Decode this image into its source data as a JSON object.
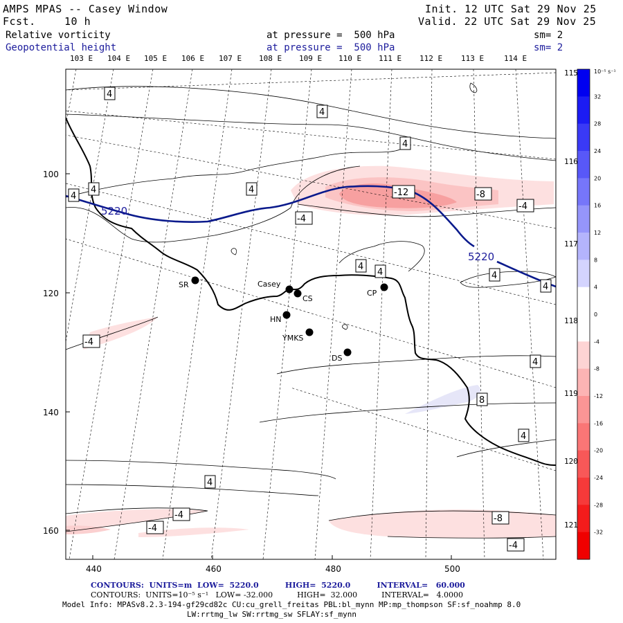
{
  "header": {
    "title": "AMPS MPAS -- Casey Window",
    "fcst_label": "Fcst.",
    "fcst_value": "10 h",
    "init": "Init. 12 UTC Sat 29 Nov 25",
    "valid": "Valid. 22 UTC Sat 29 Nov 25",
    "field1_name": "Relative vorticity",
    "field1_pressure": "at pressure =  500 hPa",
    "field1_sm": "sm= 2",
    "field2_name": "Geopotential height",
    "field2_pressure": "at pressure =  500 hPa",
    "field2_sm": "sm= 2"
  },
  "longitude_labels_top": [
    "103 E",
    "104 E",
    "105 E",
    "106 E",
    "107 E",
    "108 E",
    "109 E",
    "110 E",
    "111 E",
    "112 E",
    "113 E",
    "114 E"
  ],
  "longitude_labels_right": [
    "115 E",
    "116 E",
    "117 E",
    "118 E",
    "119 E",
    "120 E",
    "121 E"
  ],
  "y_axis_ticks": [
    "100",
    "120",
    "140",
    "160"
  ],
  "x_axis_ticks": [
    "440",
    "460",
    "480",
    "500"
  ],
  "stations": [
    {
      "name": "SR"
    },
    {
      "name": "Casey"
    },
    {
      "name": "CS"
    },
    {
      "name": "HN"
    },
    {
      "name": "YMKS"
    },
    {
      "name": "CP"
    },
    {
      "name": "DS"
    }
  ],
  "height_contour_label": "5220",
  "contour_labels": {
    "pos4": "4",
    "neg4": "-4",
    "neg8": "-8",
    "neg12": "-12",
    "pos8": "8"
  },
  "colorbar": {
    "unit": "10⁻⁵ s⁻¹",
    "ticks": [
      "32",
      "28",
      "24",
      "20",
      "16",
      "12",
      "8",
      "4",
      "0",
      "-4",
      "-8",
      "-12",
      "-16",
      "-20",
      "-24",
      "-28",
      "-32"
    ],
    "colors": [
      "#0000f0",
      "#1c1cf4",
      "#3a3af6",
      "#5858f8",
      "#7676fa",
      "#9595fb",
      "#b4b4fc",
      "#d4d4fe",
      "#ffffff",
      "#ffffff",
      "#fdd4d4",
      "#fcb4b4",
      "#fb9595",
      "#fa7676",
      "#f85858",
      "#f63a3a",
      "#f41c1c",
      "#f00000"
    ]
  },
  "footer": {
    "line1_contours": "CONTOURS:  UNITS=m  LOW=  5220.0          HIGH=  5220.0          INTERVAL=   60.000",
    "line2_contours": "CONTOURS:  UNITS=10⁻⁵ s⁻¹   LOW= -32.000          HIGH=  32.000          INTERVAL=   4.0000",
    "line3_model": "Model Info: MPASv8.2.3-194-gf29cd82c CU:cu_grell_freitas PBL:bl_mynn MP:mp_thompson SF:sf_noahmp 8.0",
    "line4_model": "LW:rrtmg_lw SW:rrtmg_sw SFLAY:sf_mynn"
  }
}
